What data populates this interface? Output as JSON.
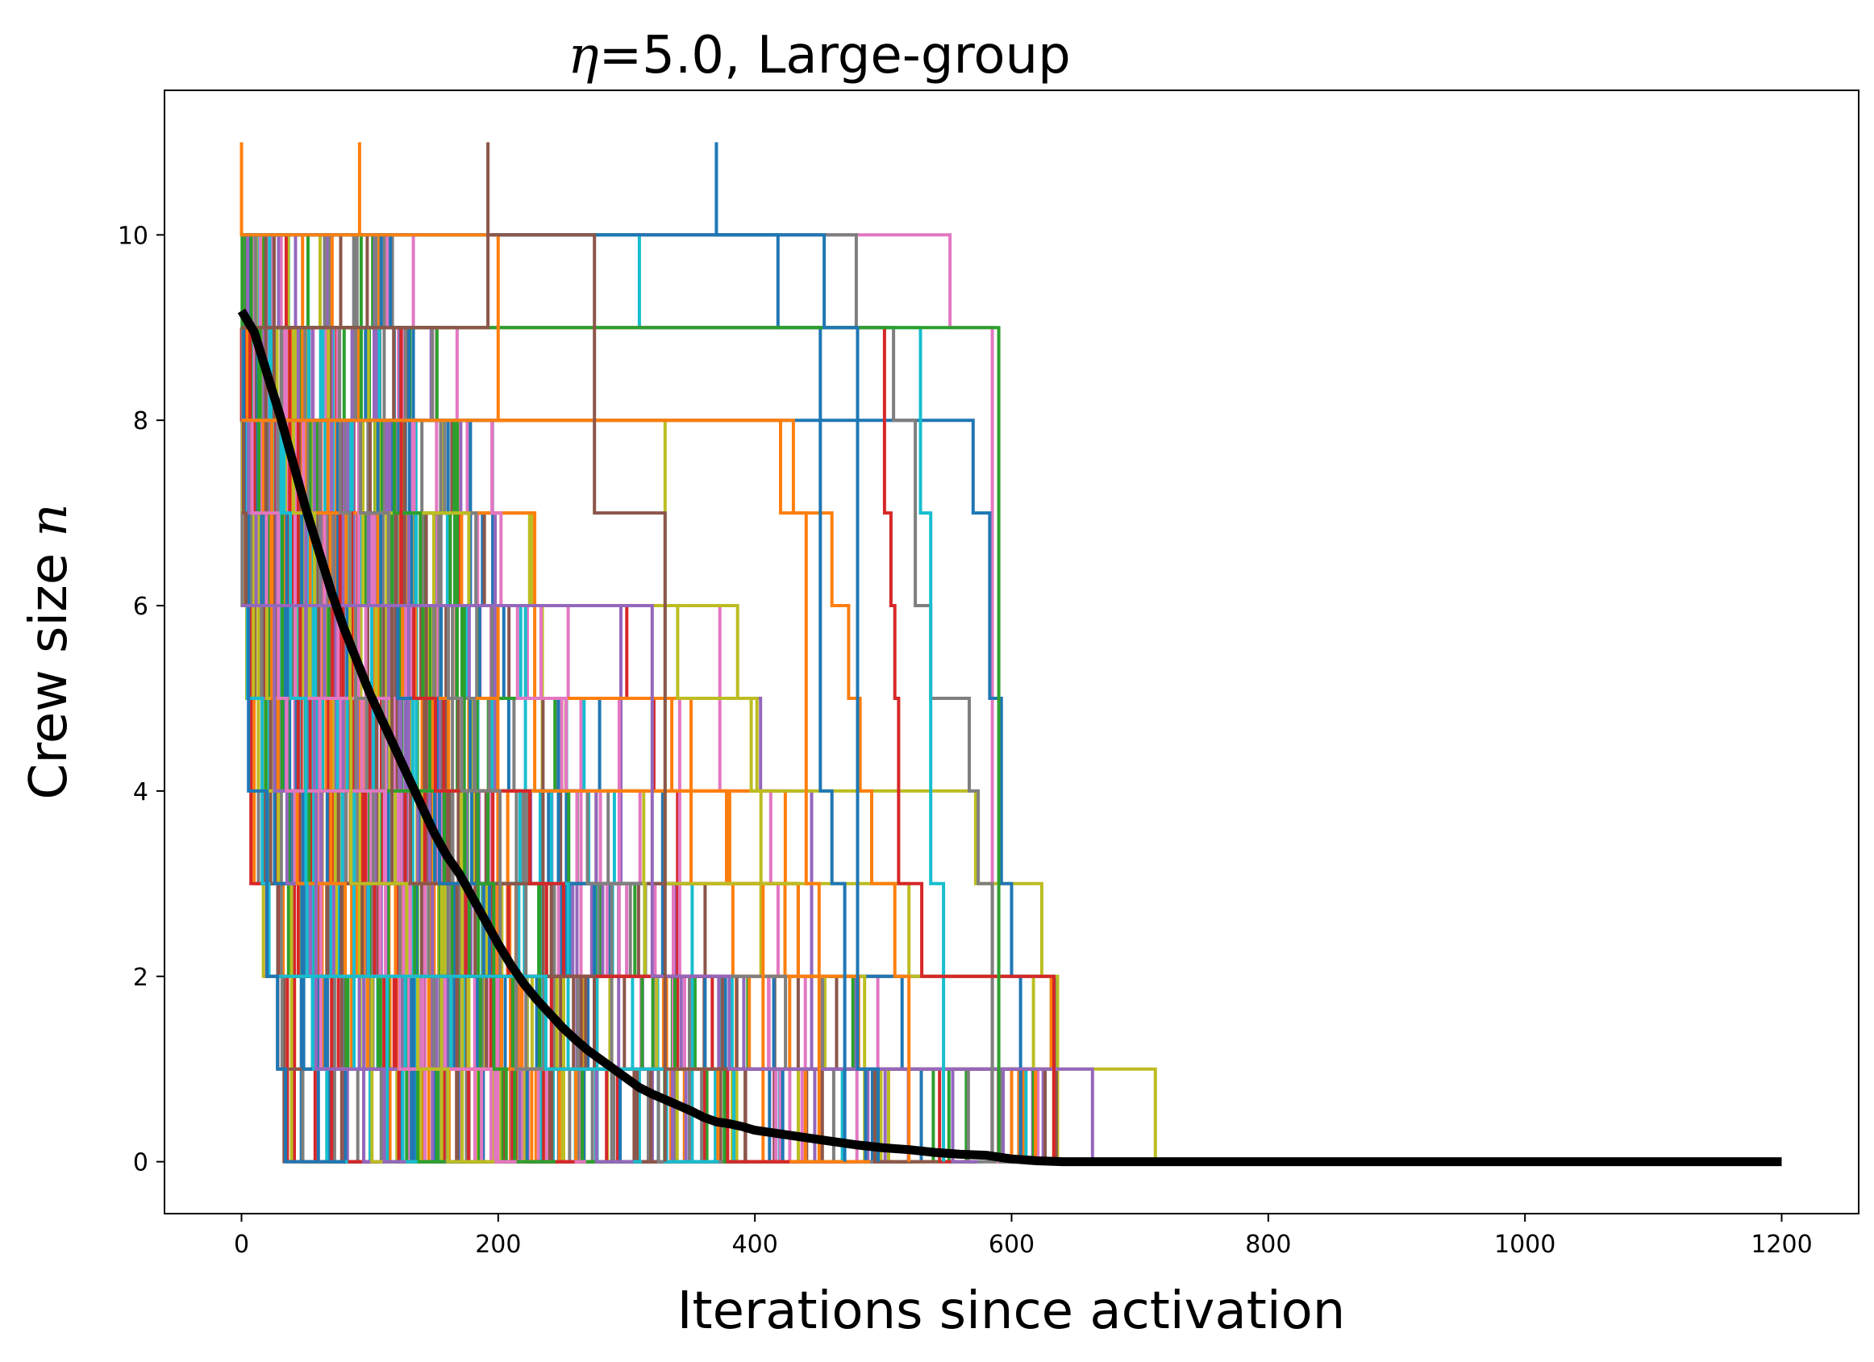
{
  "chart_data": {
    "type": "line",
    "title_symbol": "η",
    "title_rest": "=5.0, Large-group",
    "xlabel": "Iterations since activation",
    "ylabel_text": "Crew size",
    "ylabel_var": "n",
    "xlim": [
      -60,
      1260
    ],
    "ylim": [
      -0.56,
      11.56
    ],
    "xticks": [
      0,
      200,
      400,
      600,
      800,
      1000,
      1200
    ],
    "yticks": [
      0,
      2,
      4,
      6,
      8,
      10
    ],
    "grid": false,
    "legend": "none",
    "colors": [
      "#1f77b4",
      "#ff7f0e",
      "#2ca02c",
      "#d62728",
      "#9467bd",
      "#8c564b",
      "#e377c2",
      "#7f7f7f",
      "#bcbd22",
      "#17becf"
    ],
    "mean_color": "#000000",
    "highlighted_traces": [
      {
        "color": "#e377c2",
        "steps": [
          [
            0,
            10
          ],
          [
            552,
            9
          ],
          [
            585,
            0
          ]
        ]
      },
      {
        "color": "#bcbd22",
        "steps": [
          [
            0,
            8
          ],
          [
            330,
            3
          ],
          [
            520,
            2
          ],
          [
            617,
            1
          ],
          [
            712,
            0
          ]
        ]
      },
      {
        "color": "#1f77b4",
        "steps": [
          [
            0,
            8
          ],
          [
            570,
            7
          ],
          [
            583,
            5
          ],
          [
            592,
            3
          ],
          [
            600,
            2
          ],
          [
            607,
            0
          ]
        ]
      },
      {
        "color": "#9467bd",
        "steps": [
          [
            0,
            6
          ],
          [
            320,
            2
          ],
          [
            380,
            1
          ],
          [
            663,
            0
          ]
        ]
      },
      {
        "color": "#7f7f7f",
        "steps": [
          [
            0,
            10
          ],
          [
            479,
            9
          ],
          [
            508,
            8
          ],
          [
            525,
            6
          ],
          [
            537,
            5
          ],
          [
            567,
            4
          ],
          [
            574,
            3
          ],
          [
            585,
            0
          ]
        ]
      },
      {
        "color": "#17becf",
        "steps": [
          [
            0,
            10
          ],
          [
            310,
            9
          ],
          [
            529,
            7
          ],
          [
            537,
            3
          ],
          [
            547,
            0
          ]
        ]
      },
      {
        "color": "#ff7f0e",
        "steps": [
          [
            0,
            8
          ],
          [
            420,
            7
          ],
          [
            460,
            6
          ],
          [
            473,
            5
          ],
          [
            482,
            4
          ],
          [
            491,
            3
          ],
          [
            509,
            2
          ],
          [
            520,
            0
          ]
        ]
      },
      {
        "color": "#d62728",
        "steps": [
          [
            0,
            9
          ],
          [
            501,
            7
          ],
          [
            506,
            6
          ],
          [
            509,
            5
          ],
          [
            512,
            3
          ],
          [
            530,
            2
          ],
          [
            633,
            0
          ]
        ]
      },
      {
        "color": "#1f77b4",
        "steps": [
          [
            370,
            11
          ],
          [
            370,
            10
          ],
          [
            418,
            9
          ],
          [
            451,
            4
          ],
          [
            460,
            3
          ],
          [
            470,
            0
          ]
        ]
      },
      {
        "color": "#2ca02c",
        "steps": [
          [
            0,
            9
          ],
          [
            590,
            2
          ],
          [
            590,
            0
          ]
        ]
      },
      {
        "color": "#1f77b4",
        "steps": [
          [
            0,
            10
          ],
          [
            454,
            9
          ],
          [
            480,
            1
          ],
          [
            496,
            0
          ]
        ]
      },
      {
        "color": "#ff7f0e",
        "steps": [
          [
            0,
            11
          ],
          [
            0,
            10
          ],
          [
            92,
            11
          ],
          [
            92,
            10
          ],
          [
            200,
            8
          ],
          [
            430,
            7
          ],
          [
            440,
            3
          ],
          [
            450,
            0
          ]
        ]
      },
      {
        "color": "#8c564b",
        "steps": [
          [
            0,
            9
          ],
          [
            192,
            11
          ],
          [
            192,
            10
          ],
          [
            275,
            7
          ],
          [
            330,
            0
          ]
        ]
      }
    ],
    "mean": [
      [
        0,
        9.18
      ],
      [
        10,
        8.95
      ],
      [
        20,
        8.5
      ],
      [
        30,
        8.05
      ],
      [
        40,
        7.55
      ],
      [
        50,
        7.05
      ],
      [
        60,
        6.6
      ],
      [
        70,
        6.15
      ],
      [
        80,
        5.75
      ],
      [
        90,
        5.4
      ],
      [
        100,
        5.05
      ],
      [
        110,
        4.75
      ],
      [
        120,
        4.45
      ],
      [
        130,
        4.15
      ],
      [
        140,
        3.85
      ],
      [
        150,
        3.55
      ],
      [
        160,
        3.3
      ],
      [
        170,
        3.1
      ],
      [
        180,
        2.85
      ],
      [
        190,
        2.6
      ],
      [
        200,
        2.35
      ],
      [
        210,
        2.12
      ],
      [
        220,
        1.92
      ],
      [
        230,
        1.75
      ],
      [
        240,
        1.6
      ],
      [
        250,
        1.45
      ],
      [
        260,
        1.32
      ],
      [
        270,
        1.2
      ],
      [
        280,
        1.1
      ],
      [
        290,
        1.0
      ],
      [
        300,
        0.9
      ],
      [
        310,
        0.8
      ],
      [
        320,
        0.73
      ],
      [
        330,
        0.67
      ],
      [
        340,
        0.61
      ],
      [
        350,
        0.55
      ],
      [
        360,
        0.48
      ],
      [
        370,
        0.43
      ],
      [
        380,
        0.41
      ],
      [
        390,
        0.38
      ],
      [
        400,
        0.34
      ],
      [
        420,
        0.3
      ],
      [
        440,
        0.26
      ],
      [
        460,
        0.22
      ],
      [
        480,
        0.18
      ],
      [
        500,
        0.15
      ],
      [
        520,
        0.13
      ],
      [
        540,
        0.1
      ],
      [
        560,
        0.08
      ],
      [
        580,
        0.07
      ],
      [
        590,
        0.05
      ],
      [
        600,
        0.03
      ],
      [
        620,
        0.01
      ],
      [
        640,
        0.0
      ],
      [
        700,
        0.0
      ],
      [
        800,
        0.0
      ],
      [
        1000,
        0.0
      ],
      [
        1200,
        0.0
      ]
    ]
  }
}
